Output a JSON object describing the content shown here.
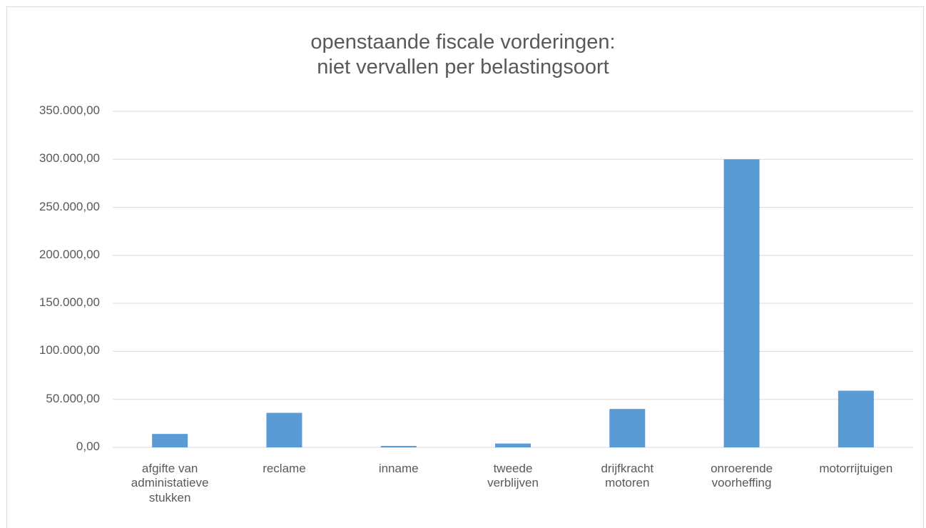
{
  "chart_data": {
    "type": "bar",
    "title": "openstaande fiscale vorderingen:\nniet vervallen per belastingsoort",
    "categories": [
      "afgifte van\nadministatieve\nstukken",
      "reclame",
      "inname",
      "tweede\nverblijven",
      "drijfkracht\nmotoren",
      "onroerende\nvoorheffing",
      "motorrijtuigen"
    ],
    "values": [
      14000,
      36000,
      1500,
      4000,
      40000,
      300000,
      59000
    ],
    "color": "#5b9bd5",
    "ylim": [
      0,
      350000
    ],
    "yticks": [
      {
        "value": 0,
        "label": "0,00"
      },
      {
        "value": 50000,
        "label": "50.000,00"
      },
      {
        "value": 100000,
        "label": "100.000,00"
      },
      {
        "value": 150000,
        "label": "150.000,00"
      },
      {
        "value": 200000,
        "label": "200.000,00"
      },
      {
        "value": 250000,
        "label": "250.000,00"
      },
      {
        "value": 300000,
        "label": "300.000,00"
      },
      {
        "value": 350000,
        "label": "350.000,00"
      }
    ],
    "grid": true
  }
}
